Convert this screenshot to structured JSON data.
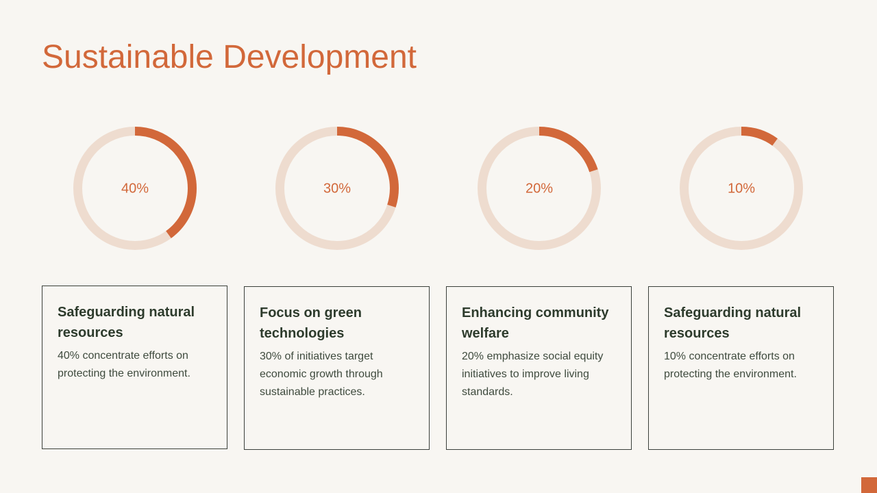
{
  "slide": {
    "title": "Sustainable Development"
  },
  "colors": {
    "accent": "#d2683a",
    "track": "#eedccf",
    "background": "#f8f6f2",
    "heading_text": "#2d3b2c",
    "body_text": "#3e4a3d"
  },
  "chart_data": {
    "type": "donut",
    "items": [
      {
        "value": 40,
        "label": "40%"
      },
      {
        "value": 30,
        "label": "30%"
      },
      {
        "value": 20,
        "label": "20%"
      },
      {
        "value": 10,
        "label": "10%"
      }
    ]
  },
  "cards": [
    {
      "title": "Safeguarding natural resources",
      "text": "40% concentrate efforts on protecting the environment."
    },
    {
      "title": "Focus on green technologies",
      "text": "30% of initiatives target economic growth through sustainable practices."
    },
    {
      "title": "Enhancing community welfare",
      "text": "20% emphasize social equity initiatives to improve living standards."
    },
    {
      "title": "Safeguarding natural resources",
      "text": "10% concentrate efforts on protecting the environment."
    }
  ]
}
